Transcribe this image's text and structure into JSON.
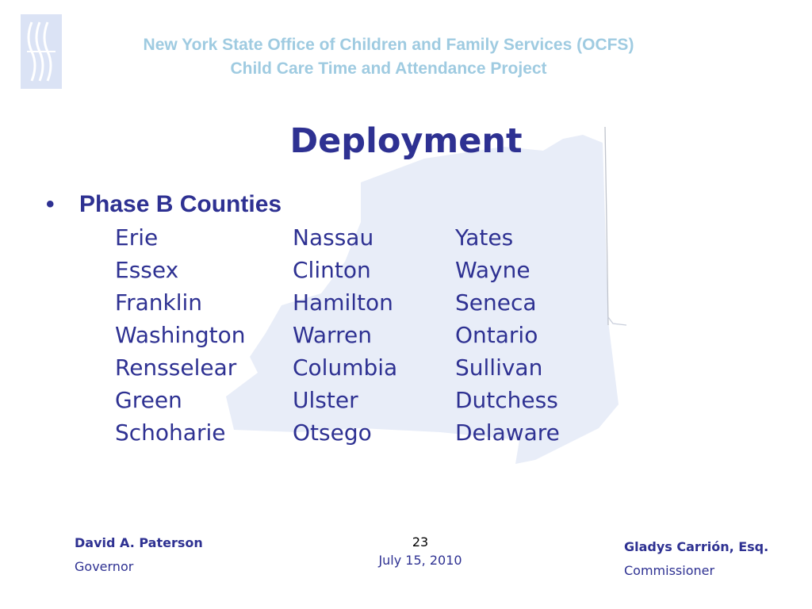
{
  "header": {
    "line1": "New York State Office of Children and Family Services (OCFS)",
    "line2": "Child Care Time and Attendance Project"
  },
  "logo": {
    "icon": "ocfs-logo-icon"
  },
  "background": {
    "icon": "new-york-state-map-icon"
  },
  "slide": {
    "title": "Deployment",
    "bullet": "Phase B Counties",
    "counties": [
      [
        "Erie",
        "Nassau",
        "Yates"
      ],
      [
        "Essex",
        "Clinton",
        "Wayne"
      ],
      [
        "Franklin",
        "Hamilton",
        "Seneca"
      ],
      [
        "Washington",
        "Warren",
        "Ontario"
      ],
      [
        "Rensselear",
        "Columbia",
        "Sullivan"
      ],
      [
        "Green",
        "Ulster",
        "Dutchess"
      ],
      [
        "Schoharie",
        "Otsego",
        "Delaware"
      ]
    ]
  },
  "footer": {
    "left_name": "David A. Paterson",
    "left_role": "Governor",
    "page_number": "23",
    "date": "July 15, 2010",
    "right_name": "Gladys Carrión, Esq.",
    "right_role": "Commissioner"
  },
  "colors": {
    "title": "#2e3192",
    "header": "#9fcbe1",
    "map": "#e8edf8",
    "logo": "#dbe3f5"
  }
}
